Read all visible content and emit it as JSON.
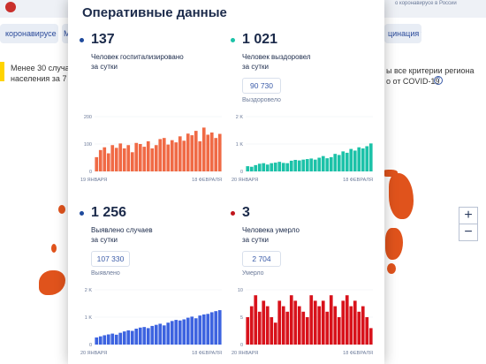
{
  "background": {
    "top_right_text": "о коронавирусе в России",
    "nav": {
      "coronavirus_label": "коронавирусе ▾",
      "second_label": "М",
      "vaccination_label": "цинация ▾"
    },
    "notice_left_line1": "Менее 30 случаев",
    "notice_left_line2": "населения за 7 су",
    "notice_right_line1": "ы все критерии региона",
    "notice_right_line2": "о от COVID-19",
    "help_icon": "?",
    "zoom_in": "+",
    "zoom_out": "−",
    "map_color": "#e0531c"
  },
  "modal": {
    "title": "Оперативные данные",
    "panels": [
      {
        "id": "hospitalized",
        "value": "137",
        "desc_line1": "Человек госпитализировано",
        "desc_line2": "за сутки",
        "dot_color": "#1f4a9c"
      },
      {
        "id": "recovered",
        "value": "1 021",
        "desc_line1": "Человек выздоровел",
        "desc_line2": "за сутки",
        "total": "90 730",
        "total_label": "Выздоровело",
        "dot_color": "#1cc2a8"
      },
      {
        "id": "cases",
        "value": "1 256",
        "desc_line1": "Выявлено случаев",
        "desc_line2": "за сутки",
        "total": "107 330",
        "total_label": "Выявлено",
        "dot_color": "#1f4a9c"
      },
      {
        "id": "deaths",
        "value": "3",
        "desc_line1": "Человека умерло",
        "desc_line2": "за сутки",
        "total": "2 704",
        "total_label": "Умерло",
        "dot_color": "#c0161c"
      }
    ]
  },
  "chart_data": [
    {
      "type": "bar",
      "id": "hospitalized",
      "color": "#f06a45",
      "ylim": [
        0,
        200
      ],
      "yticks": [
        "200",
        "100",
        "0"
      ],
      "ytick_values": [
        200,
        100,
        0
      ],
      "x_start_label": "19 ЯНВАРЯ",
      "x_end_label": "18 ФЕВРАЛЯ",
      "values": [
        52,
        78,
        88,
        66,
        96,
        86,
        102,
        84,
        96,
        70,
        104,
        100,
        90,
        110,
        84,
        96,
        118,
        122,
        98,
        114,
        106,
        128,
        112,
        138,
        132,
        148,
        110,
        160,
        134,
        142,
        122,
        137
      ]
    },
    {
      "type": "bar",
      "id": "recovered",
      "color": "#1cc2a8",
      "ylim": [
        0,
        2000
      ],
      "yticks": [
        "2 K",
        "1 K",
        "0"
      ],
      "ytick_values": [
        2000,
        1000,
        0
      ],
      "x_start_label": "20 ЯНВАРЯ",
      "x_end_label": "18 ФЕВРАЛЯ",
      "values": [
        190,
        170,
        230,
        280,
        300,
        250,
        300,
        320,
        350,
        310,
        300,
        390,
        420,
        400,
        430,
        450,
        470,
        430,
        500,
        560,
        480,
        520,
        640,
        600,
        730,
        680,
        820,
        760,
        880,
        840,
        920,
        1021
      ]
    },
    {
      "type": "bar",
      "id": "cases",
      "color": "#3d63e0",
      "ylim": [
        0,
        2000
      ],
      "yticks": [
        "2 K",
        "1 K",
        "0"
      ],
      "ytick_values": [
        2000,
        1000,
        0
      ],
      "x_start_label": "20 ЯНВАРЯ",
      "x_end_label": "18 ФЕВРАЛЯ",
      "values": [
        260,
        300,
        340,
        370,
        400,
        360,
        430,
        480,
        520,
        500,
        580,
        620,
        640,
        600,
        680,
        720,
        760,
        700,
        800,
        860,
        900,
        880,
        920,
        980,
        1020,
        960,
        1060,
        1100,
        1120,
        1180,
        1220,
        1256
      ]
    },
    {
      "type": "bar",
      "id": "deaths",
      "color": "#d8121b",
      "ylim": [
        0,
        10
      ],
      "yticks": [
        "10",
        "5",
        "0"
      ],
      "ytick_values": [
        10,
        5,
        0
      ],
      "x_start_label": "20 ЯНВАРЯ",
      "x_end_label": "18 ФЕВРАЛЯ",
      "values": [
        5,
        7,
        9,
        6,
        8,
        7,
        5,
        4,
        8,
        7,
        6,
        9,
        8,
        7,
        6,
        5,
        9,
        8,
        7,
        8,
        6,
        9,
        7,
        5,
        8,
        9,
        7,
        8,
        6,
        7,
        5,
        3
      ]
    }
  ]
}
